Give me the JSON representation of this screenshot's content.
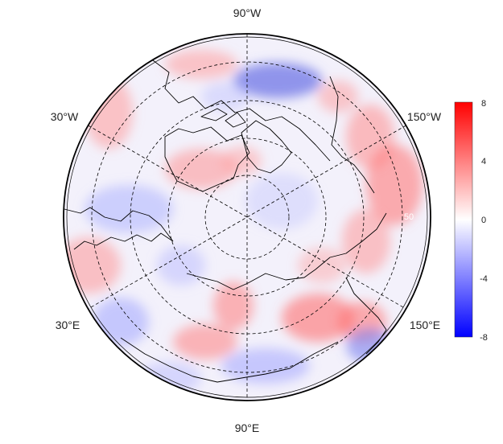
{
  "map": {
    "projection": "north polar stereographic",
    "longitude_labels": {
      "top": "90°W",
      "bottom": "90°E",
      "upper_left": "30°W",
      "upper_right": "150°W",
      "lower_left": "30°E",
      "lower_right": "150°E"
    },
    "latitude_label": "50"
  },
  "colorbar": {
    "ticks": [
      "8",
      "4",
      "0",
      "-4",
      "-8"
    ],
    "max_color": "#ff0000",
    "mid_color": "#ffffff",
    "min_color": "#0000ff"
  }
}
